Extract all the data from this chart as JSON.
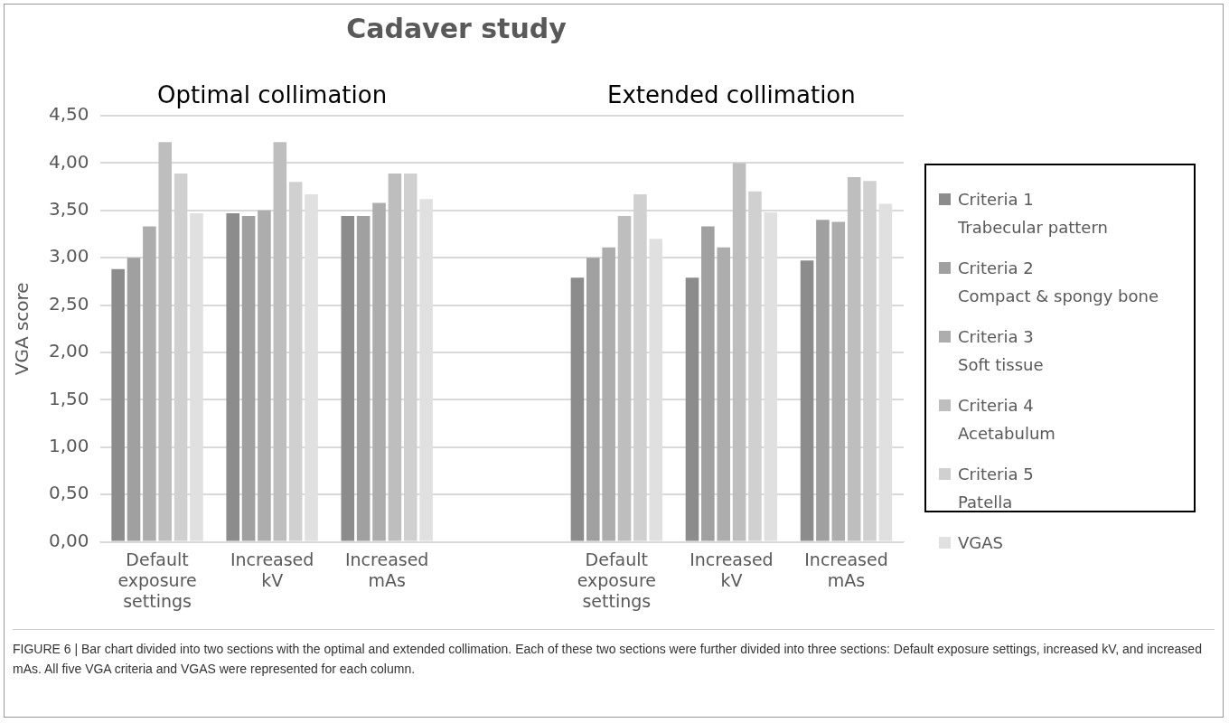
{
  "chart_data": {
    "type": "bar",
    "title": "Cadaver study",
    "ylabel": "VGA score",
    "categories": [
      "Default\nexposure\nsettings",
      "Increased\nkV",
      "Increased\nmAs",
      null,
      "Default\nexposure\nsettings",
      "Increased\nkV",
      "Increased\nmAs"
    ],
    "series": [
      {
        "name": "Criteria 1\nTrabecular pattern",
        "color": "#8c8c8c",
        "values": [
          2.88,
          3.47,
          3.44,
          null,
          2.79,
          2.79,
          2.97
        ]
      },
      {
        "name": "Criteria 2\nCompact & spongy bone",
        "color": "#a0a0a0",
        "values": [
          3.0,
          3.44,
          3.44,
          null,
          3.0,
          3.33,
          3.4
        ]
      },
      {
        "name": "Criteria 3\nSoft tissue",
        "color": "#adadad",
        "values": [
          3.33,
          3.5,
          3.58,
          null,
          3.11,
          3.11,
          3.38
        ]
      },
      {
        "name": "Criteria 4\nAcetabulum",
        "color": "#bebebe",
        "values": [
          4.22,
          4.22,
          3.89,
          null,
          3.44,
          4.0,
          3.85
        ]
      },
      {
        "name": "Criteria 5\nPatella",
        "color": "#d0d0d0",
        "values": [
          3.89,
          3.8,
          3.89,
          null,
          3.67,
          3.7,
          3.81
        ]
      },
      {
        "name": "VGAS",
        "color": "#e0e0e0",
        "values": [
          3.47,
          3.67,
          3.62,
          null,
          3.2,
          3.48,
          3.57
        ]
      }
    ],
    "ylim": [
      0,
      4.5
    ],
    "yticks": [
      {
        "value": 0,
        "label": "0,00"
      },
      {
        "value": 0.5,
        "label": "0,50"
      },
      {
        "value": 1,
        "label": "1,00"
      },
      {
        "value": 1.5,
        "label": "1,50"
      },
      {
        "value": 2,
        "label": "2,00"
      },
      {
        "value": 2.5,
        "label": "2,50"
      },
      {
        "value": 3,
        "label": "3,00"
      },
      {
        "value": 3.5,
        "label": "3,50"
      },
      {
        "value": 4,
        "label": "4,00"
      },
      {
        "value": 4.5,
        "label": "4,50"
      }
    ],
    "grid": "y",
    "legend": "right",
    "annotations": [
      "Optimal collimation",
      "Extended collimation",
      "FIGURE 6 | Bar chart divided into two sections with the optimal and extended collimation. Each of these two sections were further divided into three sections: Default exposure settings, increased kV, and increased mAs. All five VGA criteria and VGAS were represented for each column."
    ]
  }
}
